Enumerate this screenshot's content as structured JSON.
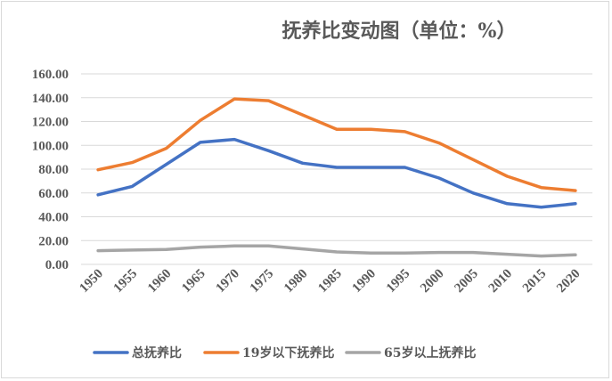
{
  "chart_data": {
    "type": "line",
    "title": "抚养比变动图（单位：%）",
    "xlabel": "",
    "ylabel": "",
    "categories": [
      "1950",
      "1955",
      "1960",
      "1965",
      "1970",
      "1975",
      "1980",
      "1985",
      "1990",
      "1995",
      "2000",
      "2005",
      "2010",
      "2015",
      "2020"
    ],
    "y_ticks": [
      "0.00",
      "20.00",
      "40.00",
      "60.00",
      "80.00",
      "100.00",
      "120.00",
      "140.00",
      "160.00"
    ],
    "ylim": [
      0,
      160
    ],
    "grid": true,
    "legend_position": "bottom",
    "series": [
      {
        "name": "总抚养比",
        "color": "#4472c4",
        "values": [
          58.5,
          65.5,
          84.0,
          102.5,
          105.0,
          95.5,
          85.0,
          81.5,
          81.5,
          81.5,
          72.5,
          60.0,
          51.0,
          48.0,
          51.0
        ]
      },
      {
        "name": "19岁以下抚养比",
        "color": "#ed7d31",
        "values": [
          79.5,
          85.5,
          97.5,
          121.0,
          139.0,
          137.5,
          125.5,
          113.5,
          113.5,
          111.5,
          102.0,
          88.0,
          74.0,
          64.5,
          62.0
        ]
      },
      {
        "name": "65岁以上抚养比",
        "color": "#a5a5a5",
        "values": [
          11.5,
          12.0,
          12.5,
          14.5,
          15.5,
          15.5,
          13.0,
          10.5,
          9.5,
          9.5,
          10.0,
          10.0,
          8.5,
          7.0,
          8.0
        ]
      }
    ]
  }
}
